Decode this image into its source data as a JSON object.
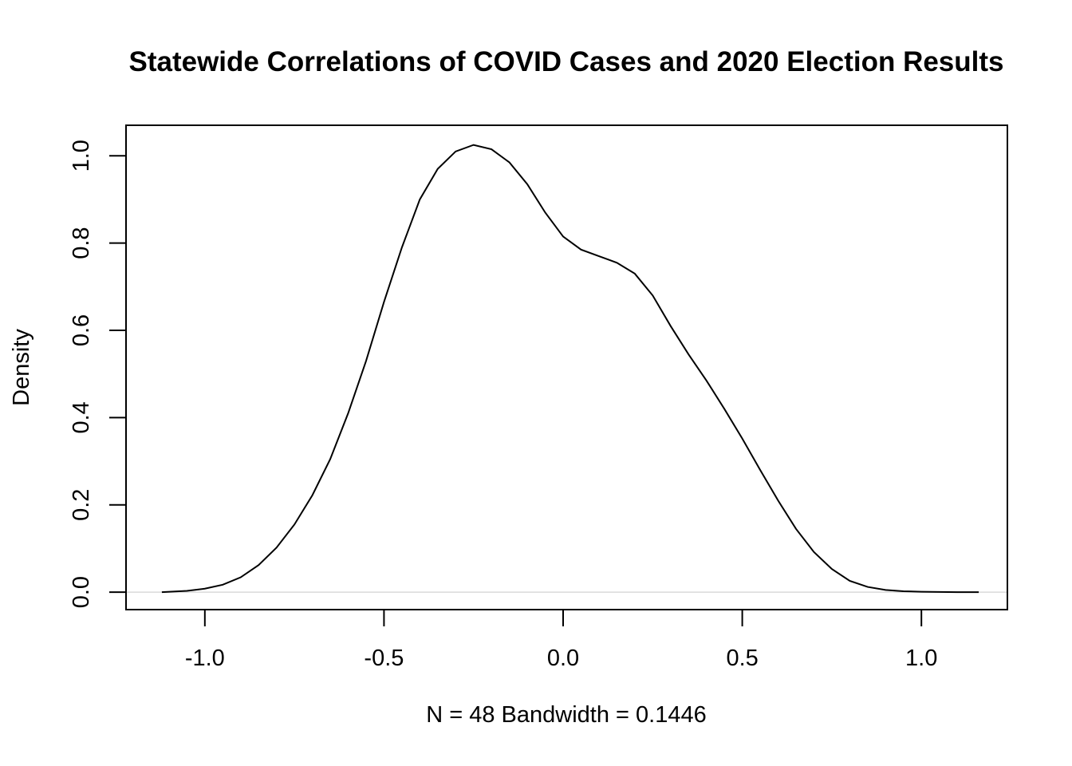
{
  "chart_data": {
    "type": "line",
    "title": "Statewide Correlations of COVID Cases and 2020 Election Results",
    "xlabel": "N = 48   Bandwidth = 0.1446",
    "ylabel": "Density",
    "xlim": [
      -1.22,
      1.24
    ],
    "ylim": [
      -0.04,
      1.07
    ],
    "x_ticks": [
      -1.0,
      -0.5,
      0.0,
      0.5,
      1.0
    ],
    "x_tick_labels": [
      "-1.0",
      "-0.5",
      "0.0",
      "0.5",
      "1.0"
    ],
    "y_ticks": [
      0.0,
      0.2,
      0.4,
      0.6,
      0.8,
      1.0
    ],
    "y_tick_labels": [
      "0.0",
      "0.2",
      "0.4",
      "0.6",
      "0.8",
      "1.0"
    ],
    "grid": false,
    "reference_line": {
      "y": 0,
      "color": "#d9d9d9"
    },
    "series": [
      {
        "color": "#000000",
        "x": [
          -1.12,
          -1.05,
          -1.0,
          -0.95,
          -0.9,
          -0.85,
          -0.8,
          -0.75,
          -0.7,
          -0.65,
          -0.6,
          -0.55,
          -0.5,
          -0.45,
          -0.4,
          -0.35,
          -0.3,
          -0.25,
          -0.2,
          -0.15,
          -0.1,
          -0.05,
          0.0,
          0.05,
          0.1,
          0.15,
          0.2,
          0.25,
          0.3,
          0.35,
          0.4,
          0.45,
          0.5,
          0.55,
          0.6,
          0.65,
          0.7,
          0.75,
          0.8,
          0.85,
          0.9,
          0.95,
          1.0,
          1.05,
          1.1,
          1.16
        ],
        "y": [
          0.0,
          0.003,
          0.008,
          0.017,
          0.034,
          0.062,
          0.102,
          0.155,
          0.222,
          0.305,
          0.41,
          0.53,
          0.665,
          0.79,
          0.9,
          0.97,
          1.01,
          1.025,
          1.015,
          0.985,
          0.935,
          0.87,
          0.815,
          0.785,
          0.77,
          0.755,
          0.73,
          0.68,
          0.61,
          0.545,
          0.485,
          0.42,
          0.352,
          0.28,
          0.21,
          0.145,
          0.092,
          0.053,
          0.026,
          0.012,
          0.005,
          0.002,
          0.001,
          0.0004,
          0.0001,
          0.0
        ]
      }
    ]
  }
}
